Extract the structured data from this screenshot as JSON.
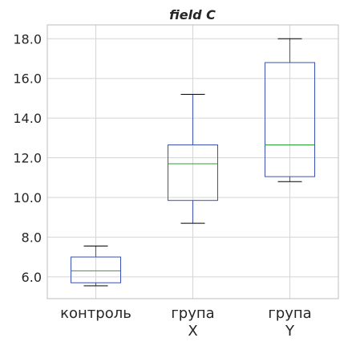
{
  "chart_data": {
    "type": "box",
    "title": "field C",
    "xlabel": "",
    "ylabel": "",
    "ylim": [
      4.9,
      18.7
    ],
    "yticks": [
      6.0,
      8.0,
      10.0,
      12.0,
      14.0,
      16.0,
      18.0
    ],
    "ytick_labels": [
      "6.0",
      "8.0",
      "10.0",
      "12.0",
      "14.0",
      "16.0",
      "18.0"
    ],
    "grid": true,
    "categories": [
      [
        "контроль"
      ],
      [
        "група",
        "X"
      ],
      [
        "група",
        "Y"
      ]
    ],
    "boxes": [
      {
        "whisker_low": 5.55,
        "q1": 5.7,
        "median": 6.3,
        "q3": 7.0,
        "whisker_high": 7.55
      },
      {
        "whisker_low": 8.7,
        "q1": 9.85,
        "median": 11.7,
        "q3": 12.65,
        "whisker_high": 15.2
      },
      {
        "whisker_low": 10.8,
        "q1": 11.05,
        "median": 12.65,
        "q3": 16.8,
        "whisker_high": 18.0
      }
    ],
    "colors": {
      "box": "#3b4fb5",
      "median": "#2ca02c",
      "whisker": "#3b4fb5",
      "cap": "#000000",
      "grid": "#d5d5d5",
      "axes_edge": "#bcbcbc"
    }
  }
}
